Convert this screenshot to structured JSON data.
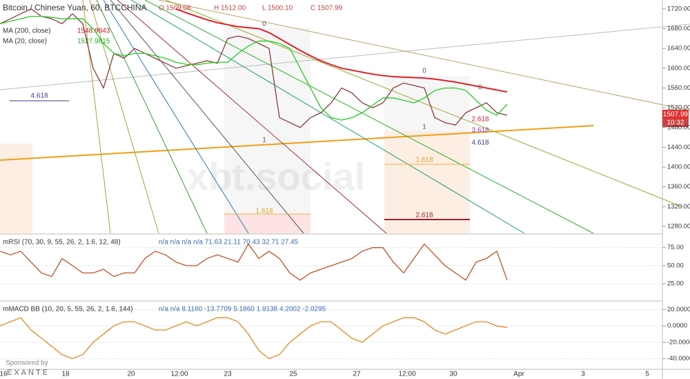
{
  "header": {
    "title": "Bitcoin / Chinese Yuan, 60, BTCCHINA",
    "ohlc": [
      "O 1509.08",
      "H 1512.00",
      "L 1500.10",
      "C 1507.99"
    ],
    "indicators": [
      {
        "name": "MA (200, close)",
        "value": "1548.9843"
      },
      {
        "name": "MA (20, close)",
        "value": "1527.9815"
      }
    ],
    "watermark": "xbt.social",
    "last_price": "1507.99",
    "last_time": "10:32",
    "annotations": [
      "0",
      "1",
      "1.618",
      "0",
      "1",
      "1.618",
      "2.618",
      "2.618",
      "3.618",
      "4.618",
      "4.618",
      "0"
    ],
    "xlabels": [
      "16",
      "18",
      "20",
      "12:00",
      "23",
      "25",
      "27",
      "12:00",
      "30",
      "Apr",
      "3",
      "5"
    ],
    "sponsor": "Sponsored by",
    "sponsor_name": "EXANTE"
  },
  "chart_data": [
    {
      "type": "line",
      "ylim": [
        1266,
        1738
      ],
      "yticks": [
        {
          "value": 1280,
          "label": "1280.00"
        },
        {
          "value": 1320,
          "label": "1320.00"
        },
        {
          "value": 1360,
          "label": "1360.00"
        },
        {
          "value": 1400,
          "label": "1400.00"
        },
        {
          "value": 1440,
          "label": "1440.00"
        },
        {
          "value": 1480,
          "label": "1480.00"
        },
        {
          "value": 1520,
          "label": "1520.00"
        },
        {
          "value": 1560,
          "label": "1560.00"
        },
        {
          "value": 1600,
          "label": "1600.00"
        },
        {
          "value": 1640,
          "label": "1640.00"
        },
        {
          "value": 1680,
          "label": "1680.00"
        },
        {
          "value": 1720,
          "label": "1720.00"
        }
      ],
      "series": [
        {
          "color": "#8b3a3a",
          "values": [
            1690,
            1700,
            1710,
            1720,
            1705,
            1700,
            1690,
            1710,
            1690,
            1600,
            1560,
            1630,
            1620,
            1640,
            1630,
            1620,
            1610,
            1600,
            1605,
            1610,
            1615,
            1610,
            1660,
            1665,
            1660,
            1650,
            1640,
            1500,
            1490,
            1480,
            1500,
            1510,
            1530,
            1560,
            1550,
            1530,
            1520,
            1530,
            1560,
            1570,
            1565,
            1560,
            1500,
            1490,
            1485,
            1510,
            1520,
            1530,
            1510,
            1505
          ]
        },
        {
          "color": "#e0202a",
          "values": [
            null,
            null,
            null,
            null,
            null,
            null,
            null,
            null,
            null,
            null,
            null,
            null,
            null,
            null,
            null,
            null,
            null,
            1720,
            1712,
            1705,
            1698,
            1692,
            1688,
            1684,
            1682,
            1680,
            1672,
            1660,
            1648,
            1636,
            1625,
            1615,
            1607,
            1600,
            1596,
            1592,
            1588,
            1585,
            1583,
            1582,
            1581,
            1580,
            1578,
            1575,
            1572,
            1568,
            1564,
            1560,
            1556,
            1552
          ]
        },
        {
          "color": "#22cc22",
          "values": [
            1690,
            1695,
            1700,
            1705,
            1705,
            1703,
            1700,
            1700,
            1700,
            1680,
            1650,
            1630,
            1625,
            1630,
            1630,
            1625,
            1620,
            1612,
            1608,
            1607,
            1610,
            1612,
            1612,
            1630,
            1645,
            1655,
            1655,
            1650,
            1640,
            1600,
            1560,
            1520,
            1500,
            1495,
            1500,
            1510,
            1525,
            1540,
            1540,
            1535,
            1530,
            1540,
            1555,
            1560,
            1560,
            1555,
            1535,
            1515,
            1505,
            1527
          ]
        }
      ]
    },
    {
      "type": "line",
      "title": "mRSI (70, 30, 9, 55, 26, 2, 1.6, 12, 48)",
      "readout": "n/a  n/a  n/a  n/a  71.63  21.11  70.43  32.71  27.45",
      "ylim": [
        5,
        90
      ],
      "yticks": [
        {
          "value": 25,
          "label": "25.00"
        },
        {
          "value": 50,
          "label": "50.00"
        },
        {
          "value": 75,
          "label": "75.00"
        }
      ],
      "series": [
        {
          "color": "#c0502a",
          "values": [
            70,
            65,
            70,
            55,
            40,
            35,
            60,
            50,
            40,
            40,
            45,
            35,
            40,
            40,
            60,
            70,
            65,
            55,
            50,
            50,
            60,
            65,
            60,
            55,
            80,
            60,
            70,
            60,
            40,
            30,
            40,
            45,
            50,
            55,
            60,
            70,
            75,
            75,
            55,
            40,
            60,
            80,
            65,
            50,
            40,
            30,
            55,
            60,
            70,
            30
          ]
        }
      ]
    },
    {
      "type": "line",
      "title": "mMACD BB (10, 20, 5, 55, 26, 2, 1.6, 144)",
      "readout": "n/a  n/a  8.1160  -13.7709  5.1860  1.9138  4.2002  -2.0295",
      "ylim": [
        -53,
        27
      ],
      "yticks": [
        {
          "value": 20,
          "label": "20.0000"
        },
        {
          "value": 0,
          "label": "0.0000"
        },
        {
          "value": -20,
          "label": "-20.0000"
        },
        {
          "value": -40,
          "label": "-40.0000"
        }
      ],
      "series": [
        {
          "color": "#e08a1e",
          "values": [
            0,
            5,
            10,
            -5,
            -15,
            -25,
            -35,
            -40,
            -35,
            -20,
            -10,
            0,
            5,
            5,
            0,
            -5,
            -5,
            0,
            5,
            0,
            5,
            10,
            10,
            5,
            -10,
            -30,
            -40,
            -35,
            -20,
            -10,
            0,
            5,
            5,
            -5,
            -15,
            -20,
            -10,
            0,
            5,
            10,
            10,
            5,
            -5,
            -10,
            -5,
            0,
            5,
            5,
            0,
            -2
          ]
        }
      ]
    }
  ]
}
